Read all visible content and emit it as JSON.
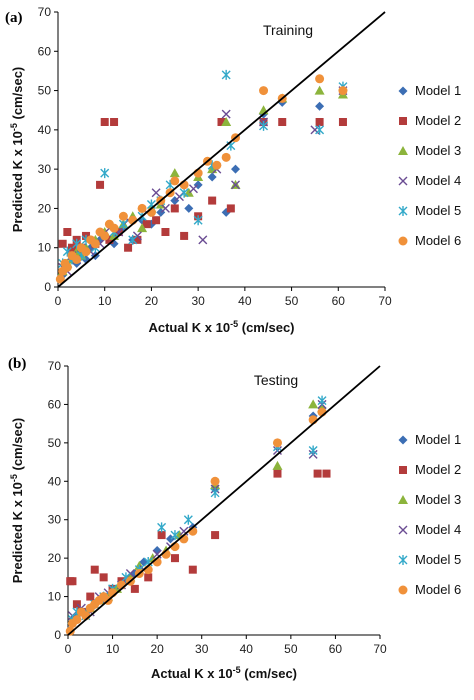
{
  "colors": {
    "model1": "#3c6eb4",
    "model2": "#b33b3b",
    "model3": "#8cb43c",
    "model4": "#6a4c93",
    "model5": "#33a9c9",
    "model6": "#f0913a",
    "line": "#000000"
  },
  "chart_data": [
    {
      "type": "scatter",
      "panel_label": "(a)",
      "title": "Training",
      "xlabel": "Actual K x 10",
      "xlabel_exp": "-5",
      "xlabel_unit": " (cm/sec)",
      "ylabel": "Predicted K x 10",
      "ylabel_exp": "-5",
      "ylabel_unit": " (cm/sec)",
      "xlim": [
        0,
        70
      ],
      "ylim": [
        0,
        70
      ],
      "xticks": [
        "0",
        "10",
        "20",
        "30",
        "40",
        "50",
        "60",
        "70"
      ],
      "yticks": [
        "0",
        "10",
        "20",
        "30",
        "40",
        "50",
        "60",
        "70"
      ],
      "legend_position": "right",
      "reference_line": "1:1",
      "series": [
        {
          "name": "Model 1",
          "marker": "diamond",
          "x": [
            1,
            2,
            3,
            4,
            5,
            6,
            7,
            8,
            9,
            10,
            12,
            14,
            16,
            18,
            20,
            22,
            25,
            28,
            30,
            33,
            36,
            38,
            44,
            48,
            56,
            61
          ],
          "y": [
            3,
            5,
            8,
            6,
            9,
            7,
            10,
            8,
            12,
            13,
            11,
            15,
            12,
            17,
            16,
            19,
            22,
            20,
            26,
            28,
            19,
            30,
            44,
            47,
            46,
            50
          ]
        },
        {
          "name": "Model 2",
          "marker": "square",
          "x": [
            1,
            2,
            3,
            4,
            5,
            6,
            8,
            9,
            10,
            11,
            12,
            13,
            15,
            17,
            19,
            21,
            23,
            25,
            27,
            30,
            33,
            35,
            37,
            44,
            48,
            56,
            61
          ],
          "y": [
            11,
            14,
            10,
            12,
            9,
            13,
            11,
            26,
            42,
            12,
            42,
            14,
            10,
            12,
            16,
            17,
            14,
            20,
            13,
            18,
            22,
            42,
            20,
            42,
            42,
            42,
            42
          ]
        },
        {
          "name": "Model 3",
          "marker": "triangle",
          "x": [
            1,
            2,
            3,
            4,
            5,
            6,
            8,
            10,
            12,
            14,
            16,
            18,
            20,
            22,
            25,
            28,
            30,
            33,
            36,
            38,
            44,
            48,
            56,
            61
          ],
          "y": [
            4,
            6,
            7,
            9,
            8,
            10,
            12,
            14,
            13,
            16,
            18,
            15,
            20,
            21,
            29,
            24,
            28,
            30,
            42,
            26,
            45,
            48,
            50,
            49
          ]
        },
        {
          "name": "Model 4",
          "marker": "x",
          "x": [
            1,
            2,
            3,
            4,
            5,
            7,
            9,
            11,
            13,
            15,
            17,
            19,
            21,
            23,
            26,
            29,
            31,
            34,
            36,
            38,
            44,
            55,
            61
          ],
          "y": [
            5,
            4,
            8,
            7,
            10,
            9,
            11,
            15,
            14,
            17,
            13,
            19,
            24,
            20,
            23,
            25,
            12,
            30,
            44,
            26,
            42,
            40,
            50
          ]
        },
        {
          "name": "Model 5",
          "marker": "star",
          "x": [
            1,
            2,
            3,
            4,
            5,
            6,
            8,
            10,
            12,
            14,
            16,
            18,
            20,
            22,
            24,
            27,
            30,
            33,
            36,
            37,
            44,
            56,
            61
          ],
          "y": [
            6,
            9,
            7,
            11,
            8,
            12,
            10,
            29,
            14,
            16,
            12,
            18,
            21,
            22,
            26,
            24,
            17,
            31,
            54,
            36,
            41,
            40,
            51
          ]
        },
        {
          "name": "Model 6",
          "marker": "circle",
          "x": [
            0.5,
            1,
            1.5,
            2,
            3,
            4,
            5,
            6,
            7,
            8,
            9,
            10,
            11,
            12,
            14,
            16,
            18,
            20,
            22,
            24,
            25,
            27,
            30,
            32,
            34,
            36,
            38,
            44,
            48,
            56,
            61
          ],
          "y": [
            2,
            4,
            6,
            5,
            8,
            7,
            10,
            9,
            12,
            11,
            14,
            13,
            16,
            15,
            18,
            17,
            20,
            19,
            22,
            24,
            27,
            26,
            29,
            32,
            31,
            33,
            38,
            50,
            48,
            53,
            50
          ]
        }
      ]
    },
    {
      "type": "scatter",
      "panel_label": "(b)",
      "title": "Testing",
      "xlabel": "Actual K x 10",
      "xlabel_exp": "-5",
      "xlabel_unit": " (cm/sec)",
      "ylabel": "Predicted  K x 10",
      "ylabel_exp": "-5",
      "ylabel_unit": " (cm/sec)",
      "xlim": [
        0,
        70
      ],
      "ylim": [
        0,
        70
      ],
      "xticks": [
        "0",
        "10",
        "20",
        "30",
        "40",
        "50",
        "60",
        "70"
      ],
      "yticks": [
        "0",
        "10",
        "20",
        "30",
        "40",
        "50",
        "60",
        "70"
      ],
      "legend_position": "right",
      "reference_line": "1:1",
      "series": [
        {
          "name": "Model 1",
          "marker": "diamond",
          "x": [
            1,
            2,
            4,
            6,
            8,
            10,
            13,
            15,
            17,
            20,
            23,
            28,
            33,
            47,
            55,
            57
          ],
          "y": [
            3,
            5,
            6,
            8,
            9,
            11,
            14,
            16,
            19,
            22,
            25,
            28,
            38,
            50,
            57,
            59
          ]
        },
        {
          "name": "Model 2",
          "marker": "square",
          "x": [
            0.5,
            1,
            2,
            3,
            5,
            6,
            8,
            10,
            12,
            15,
            18,
            21,
            24,
            28,
            33,
            47,
            56,
            58
          ],
          "y": [
            14,
            14,
            8,
            6,
            10,
            17,
            15,
            12,
            14,
            12,
            15,
            26,
            20,
            17,
            26,
            42,
            42,
            42
          ]
        },
        {
          "name": "Model 3",
          "marker": "triangle",
          "x": [
            1,
            3,
            5,
            7,
            9,
            11,
            14,
            16,
            19,
            22,
            25,
            33,
            47,
            55,
            57
          ],
          "y": [
            4,
            6,
            7,
            9,
            10,
            12,
            15,
            18,
            20,
            22,
            26,
            39,
            44,
            60,
            59
          ]
        },
        {
          "name": "Model 4",
          "marker": "x",
          "x": [
            1,
            3,
            5,
            7,
            9,
            12,
            14,
            17,
            20,
            23,
            26,
            33,
            47,
            55,
            57
          ],
          "y": [
            5,
            7,
            6,
            10,
            11,
            13,
            16,
            17,
            21,
            23,
            27,
            38,
            48,
            47,
            60
          ]
        },
        {
          "name": "Model 5",
          "marker": "star",
          "x": [
            1,
            2,
            4,
            6,
            8,
            10,
            13,
            16,
            18,
            21,
            24,
            27,
            33,
            47,
            55,
            57
          ],
          "y": [
            4,
            6,
            5,
            8,
            10,
            12,
            15,
            17,
            19,
            28,
            26,
            30,
            37,
            49,
            48,
            61
          ]
        },
        {
          "name": "Model 6",
          "marker": "circle",
          "x": [
            0.5,
            1,
            2,
            3,
            4,
            5,
            6,
            7,
            8,
            9,
            10,
            12,
            14,
            16,
            18,
            20,
            22,
            24,
            26,
            28,
            33,
            47,
            55,
            57
          ],
          "y": [
            1,
            3,
            4,
            6,
            5,
            7,
            8,
            9,
            10,
            9,
            11,
            13,
            14,
            16,
            17,
            19,
            21,
            23,
            25,
            27,
            40,
            50,
            56,
            58
          ]
        }
      ]
    }
  ]
}
